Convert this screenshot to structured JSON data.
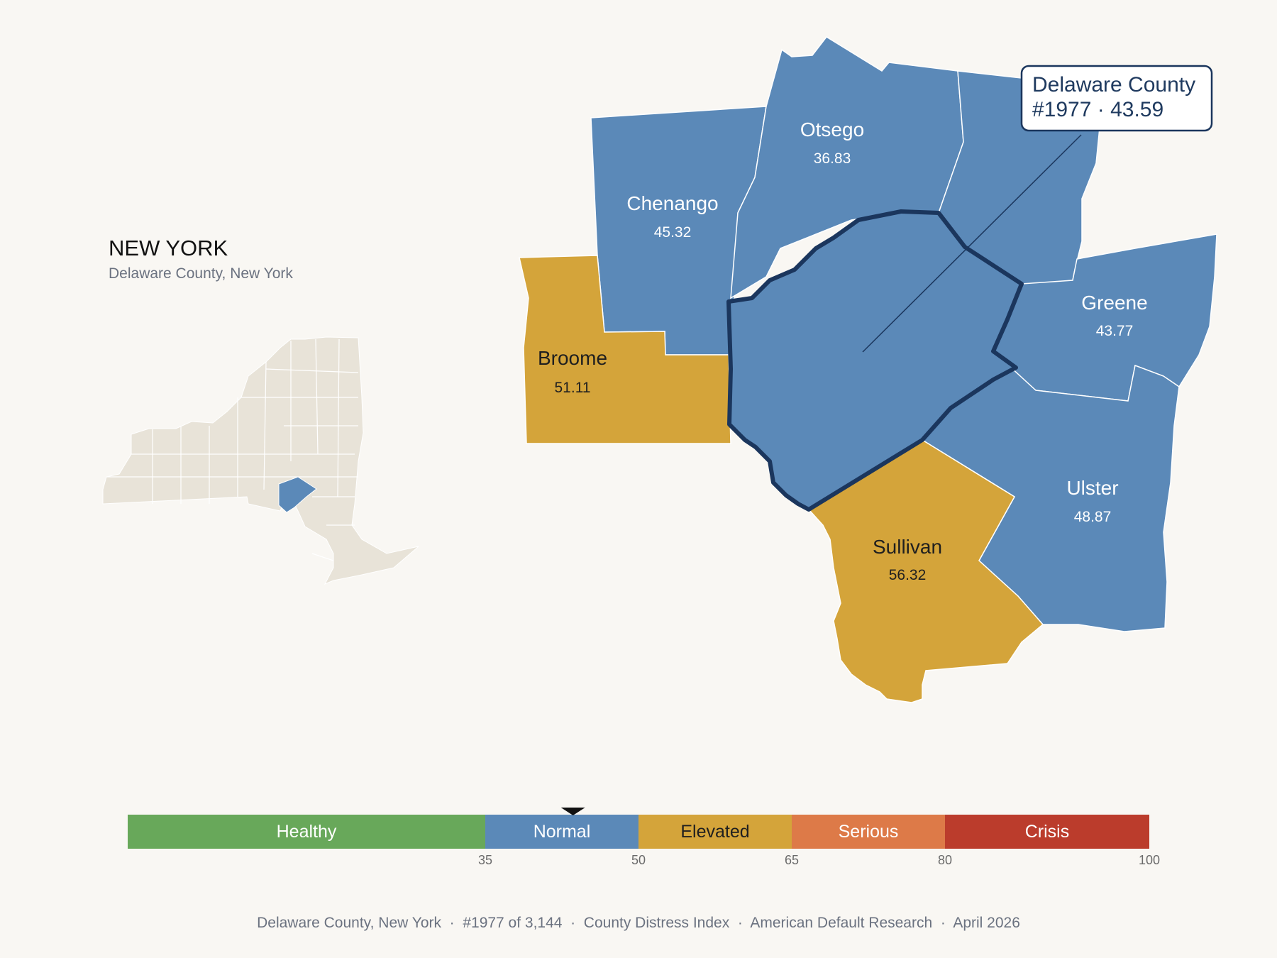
{
  "state": {
    "name": "NEW YORK",
    "subtitle": "Delaware County, New York"
  },
  "colors": {
    "normal": "#5b89b8",
    "elevated": "#d4a43a",
    "highlight_border": "#1b365d",
    "inset_fill": "#e8e3d8",
    "background": "#f9f7f3"
  },
  "counties": [
    {
      "name": "Chenango",
      "value": "45.32",
      "category": "normal"
    },
    {
      "name": "Otsego",
      "value": "36.83",
      "category": "normal"
    },
    {
      "name": "Greene",
      "value": "43.77",
      "category": "normal"
    },
    {
      "name": "Ulster",
      "value": "48.87",
      "category": "normal"
    },
    {
      "name": "Broome",
      "value": "51.11",
      "category": "elevated"
    },
    {
      "name": "Sullivan",
      "value": "56.32",
      "category": "elevated"
    }
  ],
  "tooltip": {
    "line1": "Delaware County",
    "line2": "#1977 · 43.59"
  },
  "scale": {
    "marker_value": 43.59,
    "min": 0,
    "max": 100,
    "segments": [
      {
        "label": "Healthy",
        "from": 0,
        "to": 35,
        "color": "#68a85a"
      },
      {
        "label": "Normal",
        "from": 35,
        "to": 50,
        "color": "#5b89b8"
      },
      {
        "label": "Elevated",
        "from": 50,
        "to": 65,
        "color": "#d4a43a"
      },
      {
        "label": "Serious",
        "from": 65,
        "to": 80,
        "color": "#dd7a48"
      },
      {
        "label": "Crisis",
        "from": 80,
        "to": 100,
        "color": "#bb3c2c"
      }
    ],
    "ticks": [
      "35",
      "50",
      "65",
      "80",
      "100"
    ]
  },
  "footer": "Delaware County, New York  ·  #1977 of 3,144  ·  County Distress Index  ·  American Default Research  ·  April 2026"
}
